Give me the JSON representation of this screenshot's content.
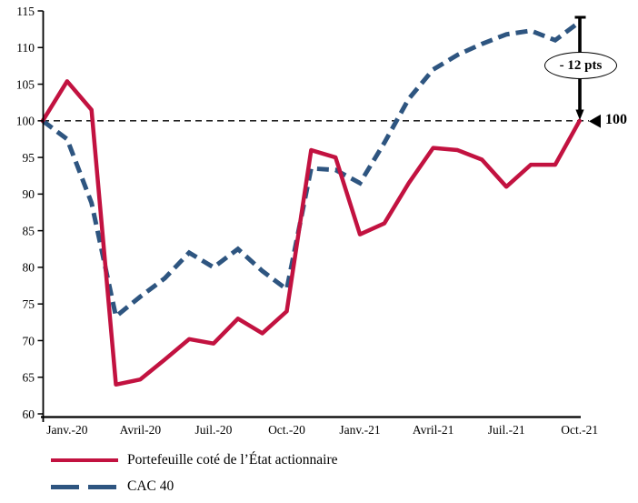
{
  "chart_data": {
    "type": "line",
    "title": "",
    "xlabel": "",
    "ylabel": "",
    "ylim": [
      60,
      115
    ],
    "y_ticks": [
      60,
      65,
      70,
      75,
      80,
      85,
      90,
      95,
      100,
      105,
      110,
      115
    ],
    "x_tick_labels": [
      "Janv.-20",
      "Avril-20",
      "Juil.-20",
      "Oct.-20",
      "Janv.-21",
      "Avril-21",
      "Juil.-21",
      "Oct.-21"
    ],
    "x_tick_positions": [
      1,
      4,
      7,
      10,
      13,
      16,
      19,
      22
    ],
    "n_points": 23,
    "grid": false,
    "legend_position": "bottom-left",
    "series": [
      {
        "name": "Portefeuille coté de l’État actionnaire",
        "color": "#C21240",
        "style": "solid",
        "values": [
          100,
          105.4,
          101.5,
          64,
          64.7,
          67.4,
          70.2,
          69.6,
          73,
          71,
          74,
          96,
          95,
          84.5,
          86,
          91.5,
          96.3,
          96,
          94.7,
          91,
          94,
          94,
          100
        ]
      },
      {
        "name": "CAC 40",
        "color": "#2E5580",
        "style": "dashed",
        "values": [
          100,
          97.5,
          88.8,
          73.3,
          76,
          78.5,
          82,
          80,
          82.5,
          79.5,
          77,
          93.5,
          93.3,
          91.5,
          97,
          103,
          107,
          109,
          110.5,
          111.8,
          112.3,
          111,
          113.5
        ]
      }
    ],
    "baseline": {
      "value": 100,
      "style": "dashed",
      "color": "#000000"
    },
    "annotations": {
      "delta_label": "- 12 pts",
      "baseline_marker_label": "100"
    },
    "axis_color": "#000000"
  }
}
